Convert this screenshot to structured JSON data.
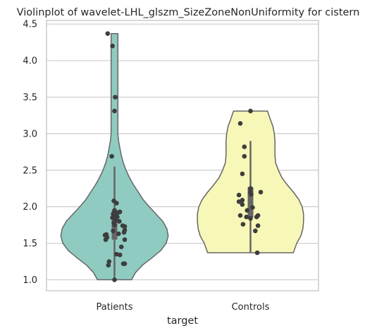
{
  "chart_data": {
    "type": "violin",
    "title": "Violinplot of wavelet-LHL_glszm_SizeZoneNonUniformity for cistern",
    "xlabel": "target",
    "ylabel": "",
    "categories": [
      "Patients",
      "Controls"
    ],
    "ylim": [
      0.85,
      4.55
    ],
    "yticks": [
      "1.0",
      "1.5",
      "2.0",
      "2.5",
      "3.0",
      "3.5",
      "4.0",
      "4.5"
    ],
    "grid": true,
    "colors": [
      "#8fcbc1",
      "#f7f7b8"
    ],
    "series": [
      {
        "category": "Patients",
        "min": 1.0,
        "max": 4.37,
        "q1": 1.55,
        "median": 1.75,
        "q3": 1.95,
        "density": [
          [
            1.0,
            0.25
          ],
          [
            1.1,
            0.31
          ],
          [
            1.2,
            0.41
          ],
          [
            1.3,
            0.55
          ],
          [
            1.4,
            0.68
          ],
          [
            1.5,
            0.76
          ],
          [
            1.6,
            0.79
          ],
          [
            1.7,
            0.77
          ],
          [
            1.8,
            0.71
          ],
          [
            1.9,
            0.61
          ],
          [
            2.0,
            0.51
          ],
          [
            2.1,
            0.42
          ],
          [
            2.2,
            0.35
          ],
          [
            2.3,
            0.28
          ],
          [
            2.4,
            0.22
          ],
          [
            2.5,
            0.17
          ],
          [
            2.6,
            0.13
          ],
          [
            2.7,
            0.1
          ],
          [
            2.8,
            0.08
          ],
          [
            2.9,
            0.06
          ],
          [
            3.0,
            0.05
          ],
          [
            3.2,
            0.05
          ],
          [
            3.4,
            0.05
          ],
          [
            3.6,
            0.05
          ],
          [
            3.8,
            0.05
          ],
          [
            4.0,
            0.05
          ],
          [
            4.2,
            0.05
          ],
          [
            4.37,
            0.05
          ]
        ],
        "points": [
          [
            -0.1,
            4.37
          ],
          [
            -0.03,
            4.2
          ],
          [
            0.01,
            3.5
          ],
          [
            0.0,
            3.31
          ],
          [
            -0.04,
            2.69
          ],
          [
            -0.01,
            2.08
          ],
          [
            0.03,
            2.05
          ],
          [
            0.0,
            1.95
          ],
          [
            0.08,
            1.93
          ],
          [
            0.05,
            1.92
          ],
          [
            -0.02,
            1.9
          ],
          [
            0.01,
            1.88
          ],
          [
            0.04,
            1.86
          ],
          [
            -0.03,
            1.85
          ],
          [
            0.02,
            1.82
          ],
          [
            0.07,
            1.8
          ],
          [
            -0.01,
            1.78
          ],
          [
            0.0,
            1.75
          ],
          [
            0.12,
            1.74
          ],
          [
            0.15,
            1.73
          ],
          [
            0.15,
            1.68
          ],
          [
            -0.02,
            1.67
          ],
          [
            0.14,
            1.65
          ],
          [
            0.06,
            1.63
          ],
          [
            -0.12,
            1.62
          ],
          [
            -0.14,
            1.61
          ],
          [
            -0.11,
            1.58
          ],
          [
            0.15,
            1.55
          ],
          [
            -0.13,
            1.55
          ],
          [
            0.1,
            1.45
          ],
          [
            0.03,
            1.35
          ],
          [
            0.08,
            1.34
          ],
          [
            -0.08,
            1.25
          ],
          [
            0.13,
            1.22
          ],
          [
            0.15,
            1.22
          ],
          [
            -0.09,
            1.2
          ],
          [
            0.0,
            1.0
          ]
        ]
      },
      {
        "category": "Controls",
        "min": 1.37,
        "max": 3.31,
        "q1": 1.85,
        "median": 2.2,
        "q3": 2.27,
        "density": [
          [
            1.37,
            0.63
          ],
          [
            1.5,
            0.68
          ],
          [
            1.6,
            0.74
          ],
          [
            1.7,
            0.77
          ],
          [
            1.8,
            0.78
          ],
          [
            1.9,
            0.78
          ],
          [
            2.0,
            0.76
          ],
          [
            2.1,
            0.71
          ],
          [
            2.2,
            0.63
          ],
          [
            2.3,
            0.54
          ],
          [
            2.4,
            0.46
          ],
          [
            2.5,
            0.41
          ],
          [
            2.6,
            0.37
          ],
          [
            2.7,
            0.36
          ],
          [
            2.8,
            0.36
          ],
          [
            2.9,
            0.36
          ],
          [
            3.0,
            0.35
          ],
          [
            3.1,
            0.33
          ],
          [
            3.2,
            0.29
          ],
          [
            3.31,
            0.25
          ]
        ],
        "points": [
          [
            0.0,
            3.31
          ],
          [
            -0.15,
            3.14
          ],
          [
            -0.09,
            2.82
          ],
          [
            -0.09,
            2.69
          ],
          [
            -0.12,
            2.45
          ],
          [
            0.0,
            2.25
          ],
          [
            0.0,
            2.2
          ],
          [
            0.01,
            2.17
          ],
          [
            0.15,
            2.2
          ],
          [
            -0.17,
            2.16
          ],
          [
            -0.17,
            2.07
          ],
          [
            -0.12,
            2.09
          ],
          [
            -0.12,
            2.03
          ],
          [
            0.03,
            1.99
          ],
          [
            -0.05,
            1.95
          ],
          [
            0.11,
            1.88
          ],
          [
            0.09,
            1.86
          ],
          [
            -0.15,
            1.88
          ],
          [
            -0.06,
            1.86
          ],
          [
            0.0,
            1.84
          ],
          [
            -0.11,
            1.76
          ],
          [
            0.11,
            1.74
          ],
          [
            0.07,
            1.67
          ],
          [
            0.1,
            1.37
          ]
        ]
      }
    ]
  }
}
